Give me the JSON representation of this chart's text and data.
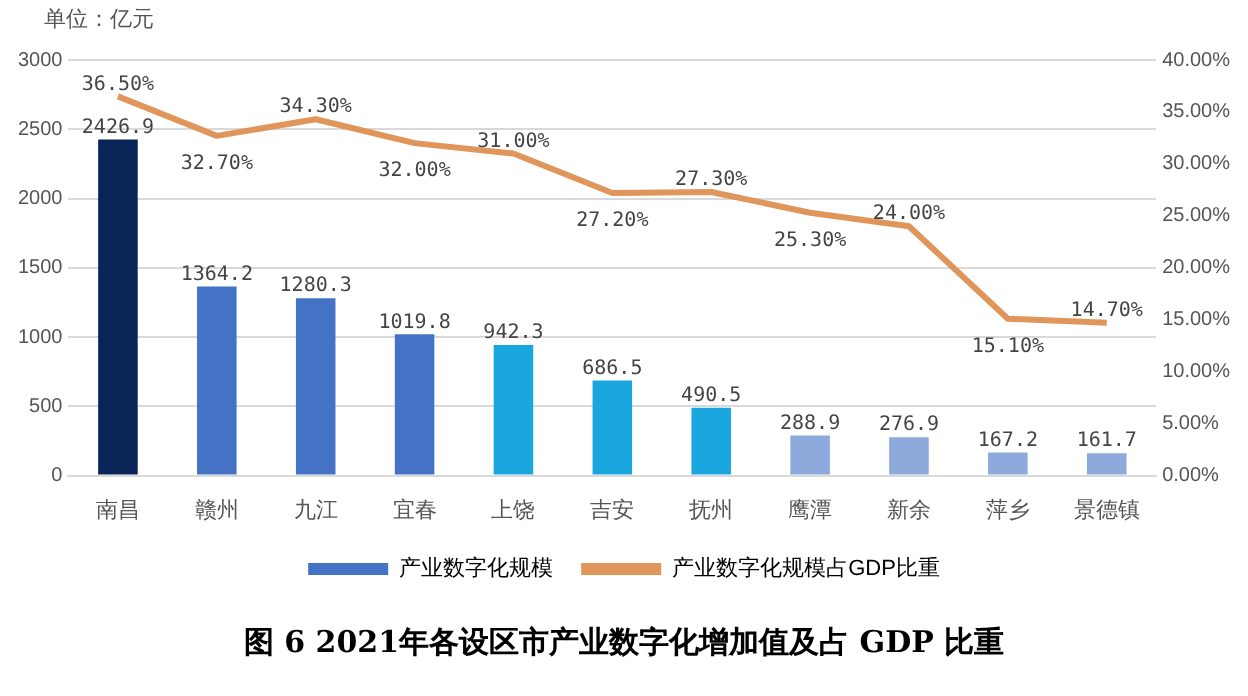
{
  "chart_data": {
    "type": "bar",
    "title": "图 6 2021年各设区市产业数字化增加值及占 GDP 比重",
    "annotations": [
      "单位：亿元"
    ],
    "categories": [
      "南昌",
      "赣州",
      "九江",
      "宜春",
      "上饶",
      "吉安",
      "抚州",
      "鹰潭",
      "新余",
      "萍乡",
      "景德镇"
    ],
    "series": [
      {
        "name": "产业数字化规模",
        "color": "#4472c4",
        "colors": [
          "#0b2457",
          "#4472c4",
          "#4472c4",
          "#4472c4",
          "#1aa7e0",
          "#1aa7e0",
          "#1aa7e0",
          "#8ea9db",
          "#8ea9db",
          "#8ea9db",
          "#8ea9db"
        ],
        "values": [
          2426.9,
          1364.2,
          1280.3,
          1019.8,
          942.3,
          686.5,
          490.5,
          288.9,
          276.9,
          167.2,
          161.7
        ],
        "value_labels": [
          "2426.9",
          "1364.2",
          "1280.3",
          "1019.8",
          "942.3",
          "686.5",
          "490.5",
          "288.9",
          "276.9",
          "167.2",
          "161.7"
        ]
      },
      {
        "name": "产业数字化规模占GDP比重",
        "type": "line",
        "axis": "y2",
        "color": "#e0955a",
        "values": [
          36.5,
          32.7,
          34.3,
          32.0,
          31.0,
          27.2,
          27.3,
          25.3,
          24.0,
          15.1,
          14.7
        ],
        "value_labels": [
          "36.50%",
          "32.70%",
          "34.30%",
          "32.00%",
          "31.00%",
          "27.20%",
          "27.30%",
          "25.30%",
          "24.00%",
          "15.10%",
          "14.70%"
        ]
      }
    ],
    "ylim": [
      0,
      3000
    ],
    "yticks": [
      0,
      500,
      1000,
      1500,
      2000,
      2500,
      3000
    ],
    "y2lim": [
      0,
      40
    ],
    "y2ticks": [
      {
        "value": 0,
        "label": "0.00%"
      },
      {
        "value": 5,
        "label": "5.00%"
      },
      {
        "value": 10,
        "label": "10.00%"
      },
      {
        "value": 15,
        "label": "15.00%"
      },
      {
        "value": 20,
        "label": "20.00%"
      },
      {
        "value": 25,
        "label": "25.00%"
      },
      {
        "value": 30,
        "label": "30.00%"
      },
      {
        "value": 35,
        "label": "35.00%"
      },
      {
        "value": 40,
        "label": "40.00%"
      }
    ],
    "grid": "y",
    "legend": "bottom",
    "marker": "none",
    "line_style": "solid"
  }
}
